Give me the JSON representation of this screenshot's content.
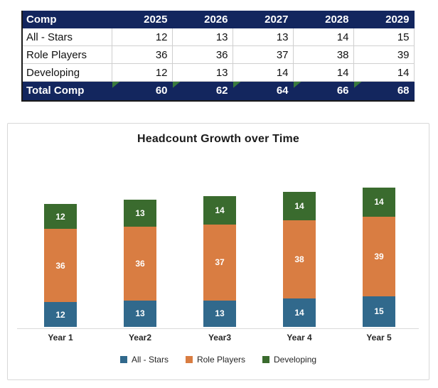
{
  "table": {
    "header": [
      "Comp",
      "2025",
      "2026",
      "2027",
      "2028",
      "2029"
    ],
    "rows": [
      {
        "label": "All - Stars",
        "values": [
          "12",
          "13",
          "13",
          "14",
          "15"
        ]
      },
      {
        "label": "Role Players",
        "values": [
          "36",
          "36",
          "37",
          "38",
          "39"
        ]
      },
      {
        "label": "Developing",
        "values": [
          "12",
          "13",
          "14",
          "14",
          "14"
        ]
      }
    ],
    "total_row": {
      "label": "Total Comp",
      "values": [
        "60",
        "62",
        "64",
        "66",
        "68"
      ],
      "formula_flags": true
    },
    "colors": {
      "header_bg": "#13265e",
      "header_text": "#ffffff",
      "flag_green": "#3a7a3c",
      "gridline": "#cfcfcf"
    }
  },
  "chart_data": {
    "type": "bar",
    "stacked": true,
    "title": "Headcount Growth over Time",
    "categories": [
      "Year 1",
      "Year2",
      "Year3",
      "Year 4",
      "Year 5"
    ],
    "series": [
      {
        "name": "All - Stars",
        "values": [
          12,
          13,
          13,
          14,
          15
        ],
        "color": "#31698c"
      },
      {
        "name": "Role Players",
        "values": [
          36,
          36,
          37,
          38,
          39
        ],
        "color": "#d97d42"
      },
      {
        "name": "Developing",
        "values": [
          12,
          13,
          14,
          14,
          14
        ],
        "color": "#3a6b2e"
      }
    ],
    "totals": [
      60,
      62,
      64,
      66,
      68
    ],
    "data_labels": true,
    "legend_position": "bottom",
    "grid": false,
    "xlabel": "",
    "ylabel": "",
    "ylim": [
      0,
      75
    ]
  }
}
